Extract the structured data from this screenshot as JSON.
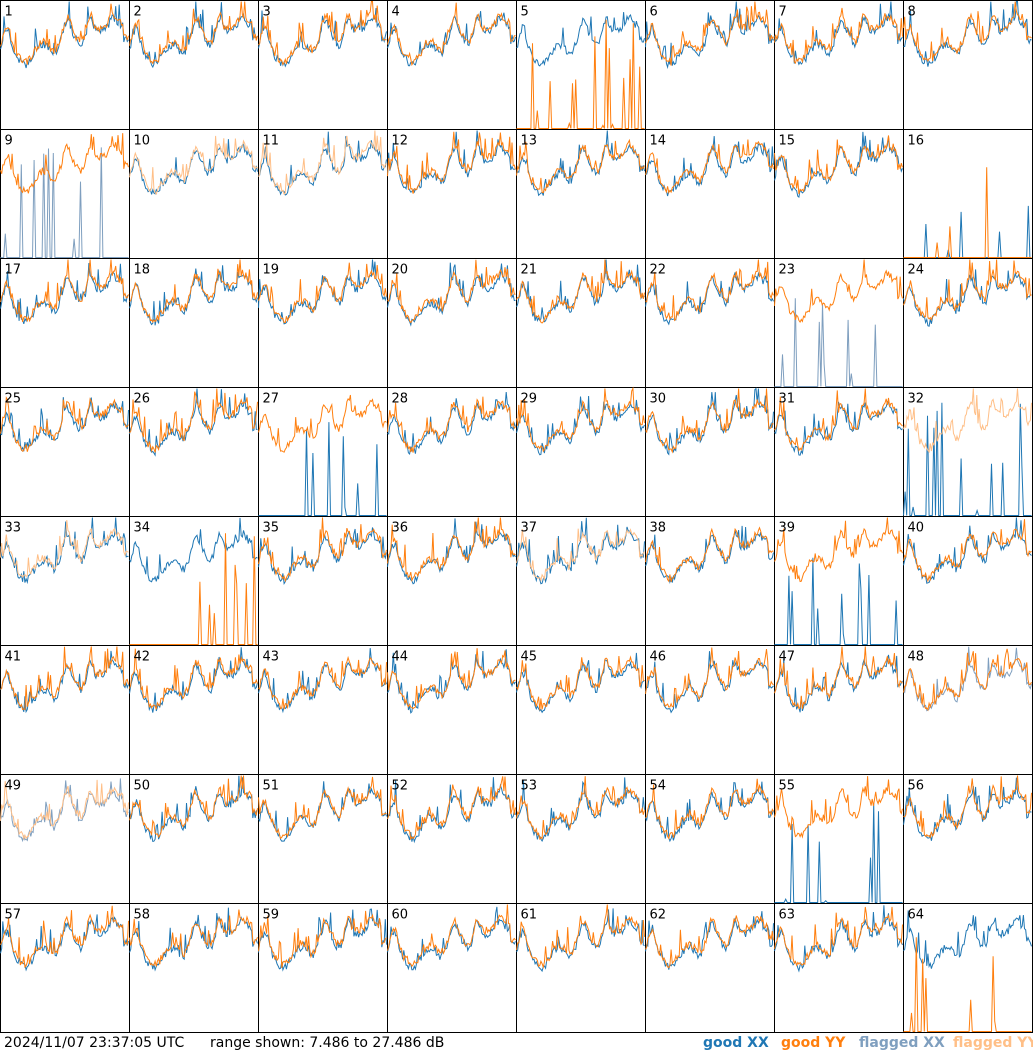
{
  "chart_data": {
    "type": "line",
    "panel_count": 64,
    "grid": "8x8",
    "panel_labels": [
      "1",
      "2",
      "3",
      "4",
      "5",
      "6",
      "7",
      "8",
      "9",
      "10",
      "11",
      "12",
      "13",
      "14",
      "15",
      "16",
      "17",
      "18",
      "19",
      "20",
      "21",
      "22",
      "23",
      "24",
      "25",
      "26",
      "27",
      "28",
      "29",
      "30",
      "31",
      "32",
      "33",
      "34",
      "35",
      "36",
      "37",
      "38",
      "39",
      "40",
      "41",
      "42",
      "43",
      "44",
      "45",
      "46",
      "47",
      "48",
      "49",
      "50",
      "51",
      "52",
      "53",
      "54",
      "55",
      "56",
      "57",
      "58",
      "59",
      "60",
      "61",
      "62",
      "63",
      "64"
    ],
    "y_range_db": [
      7.486,
      27.486
    ],
    "series": [
      {
        "key": "good_xx",
        "name": "good XX",
        "color": "#1f77b4"
      },
      {
        "key": "good_yy",
        "name": "good YY",
        "color": "#ff7f0e"
      },
      {
        "key": "flagged_xx",
        "name": "flagged XX",
        "color": "#7f9fbf"
      },
      {
        "key": "flagged_yy",
        "name": "flagged YY",
        "color": "#ffbf87"
      }
    ],
    "flagged": {
      "xx": [
        9,
        23,
        48,
        49
      ],
      "yy": [
        10,
        11,
        32,
        33,
        37,
        49
      ]
    },
    "dropouts": {
      "xx_spikes": [
        9,
        16,
        23,
        27,
        32,
        39,
        55
      ],
      "yy_spikes": [
        5,
        16,
        34,
        64
      ]
    },
    "legend_placement": "bottom-right"
  },
  "footer": {
    "timestamp": "2024/11/07 23:37:05 UTC",
    "range_text": "range shown: 7.486 to 27.486 dB",
    "legend": [
      {
        "label": "good XX",
        "color": "#1f77b4"
      },
      {
        "label": "good YY",
        "color": "#ff7f0e"
      },
      {
        "label": "flagged XX",
        "color": "#7f9fbf"
      },
      {
        "label": "flagged YY",
        "color": "#ffbf87"
      }
    ]
  }
}
